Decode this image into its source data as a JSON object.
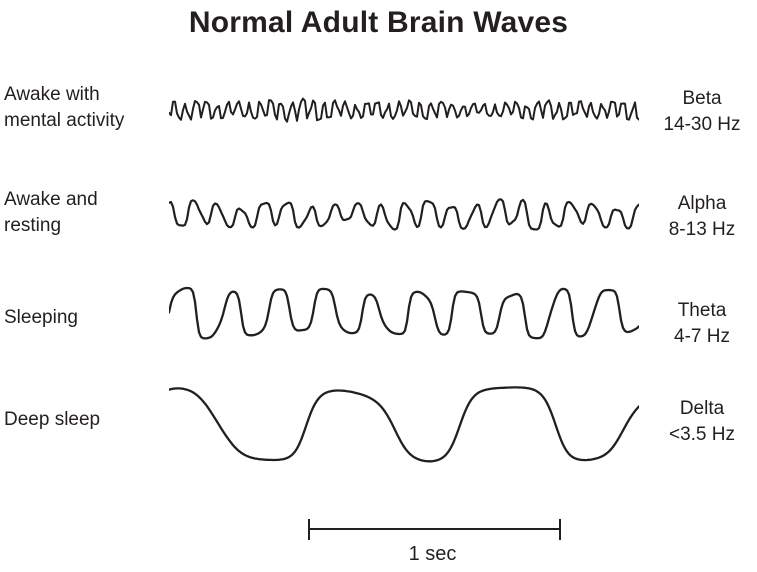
{
  "title": "Normal Adult Brain Waves",
  "colors": {
    "ink": "#231f20",
    "background": "#ffffff"
  },
  "waves": [
    {
      "band": "Beta",
      "freq_range": "14-30 Hz",
      "state_line1": "Awake with",
      "state_line2": "mental activity",
      "render": {
        "cycles": 44,
        "amplitude": 10,
        "h_slow": 0.45,
        "h_fast": 0.35,
        "depth": 0.45,
        "clip": 1.1,
        "seed": 2,
        "stroke_width": 2.0
      }
    },
    {
      "band": "Alpha",
      "freq_range": "8-13 Hz",
      "state_line1": "Awake and",
      "state_line2": "resting",
      "render": {
        "cycles": 20,
        "amplitude": 14,
        "h_slow": 0.4,
        "h_fast": 0.25,
        "depth": 0.35,
        "clip": 1.0,
        "seed": 9,
        "stroke_width": 2.2
      }
    },
    {
      "band": "Theta",
      "freq_range": "4-7 Hz",
      "state_line1": "Sleeping",
      "state_line2": "",
      "render": {
        "cycles": 10,
        "amplitude": 25,
        "h_slow": 0.3,
        "h_fast": 0.22,
        "depth": 0.25,
        "clip": 1.7,
        "seed": 4,
        "stroke_width": 2.3
      }
    },
    {
      "band": "Delta",
      "freq_range": "<3.5 Hz",
      "state_line1": "Deep sleep",
      "state_line2": "",
      "render": {
        "cycles": 2.9,
        "amplitude": 38,
        "h_slow": 0.2,
        "h_fast": 0.14,
        "depth": 0.12,
        "clip": 1.5,
        "seed": 8,
        "stroke_width": 2.3
      }
    }
  ],
  "scale_bar": {
    "label": "1 sec"
  }
}
